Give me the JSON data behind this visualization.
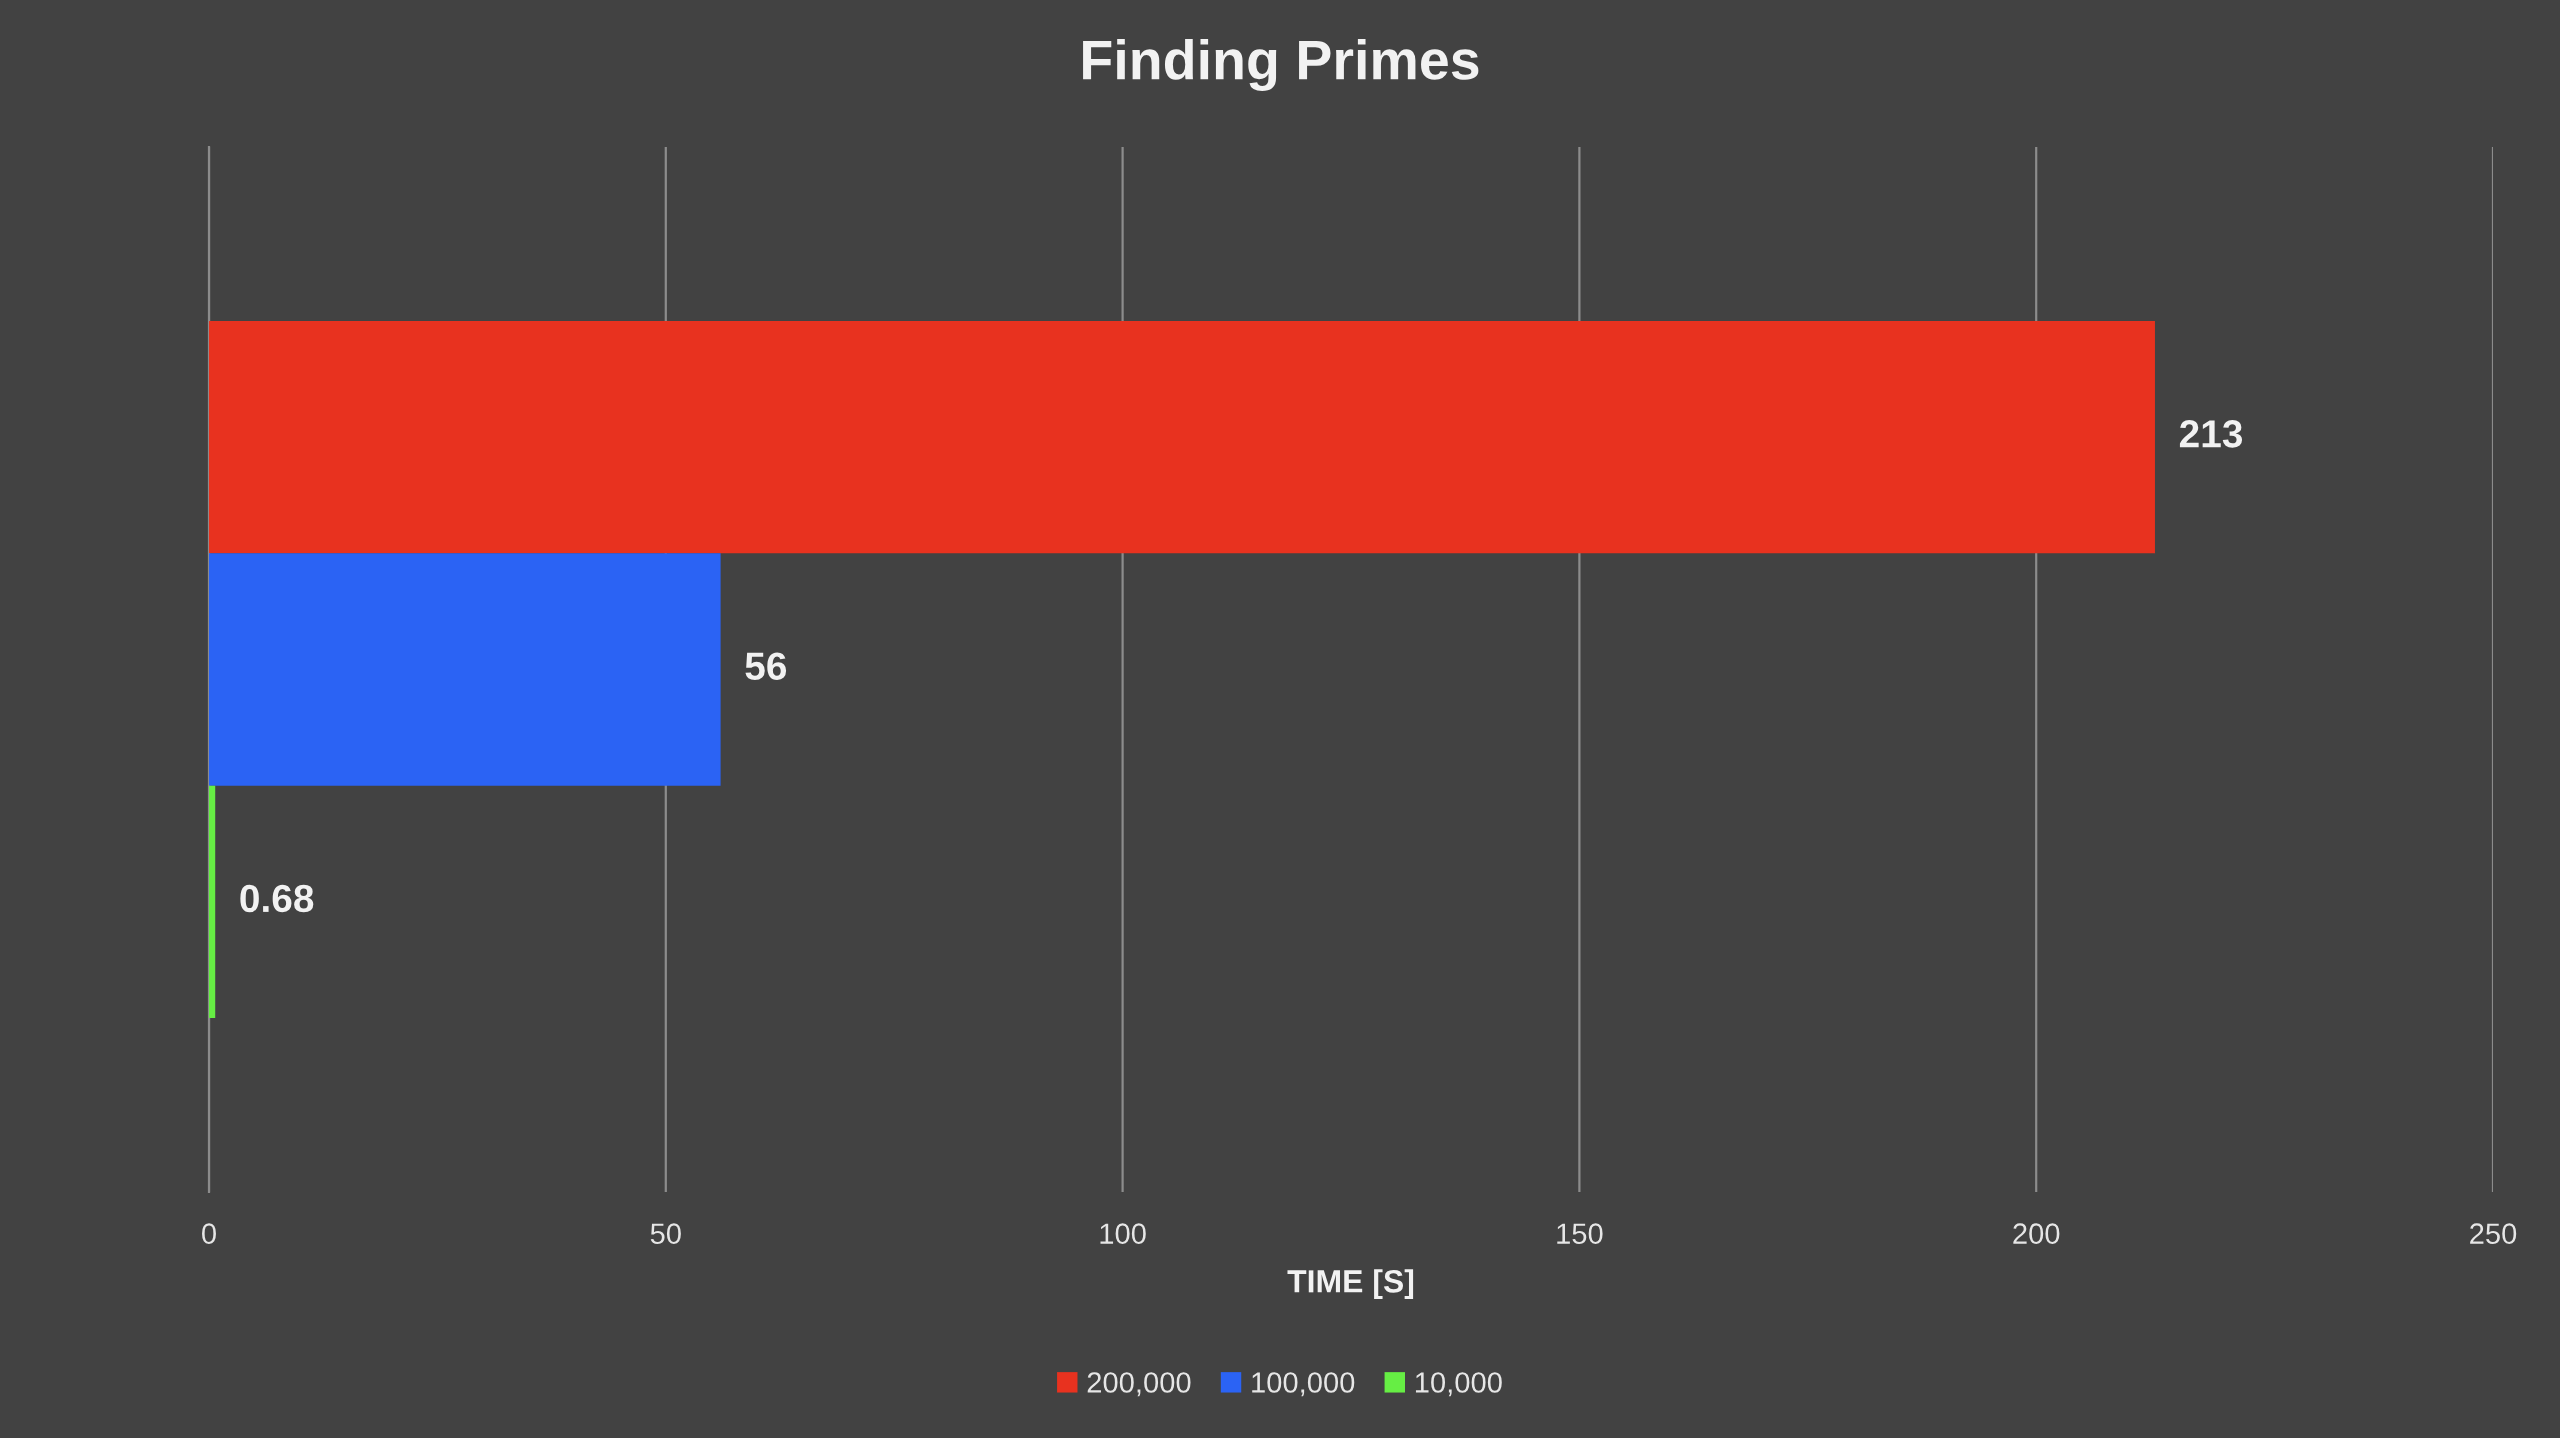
{
  "chart_data": {
    "type": "bar",
    "orientation": "horizontal",
    "title": "Finding Primes",
    "xlabel": "TIME [S]",
    "categories": [
      null
    ],
    "series": [
      {
        "name": "200,000",
        "color": "#e8321f",
        "values": [
          213
        ]
      },
      {
        "name": "100,000",
        "color": "#2b63f4",
        "values": [
          56
        ]
      },
      {
        "name": "10,000",
        "color": "#66ee44",
        "values": [
          0.68
        ]
      }
    ],
    "xlim": [
      0,
      250
    ],
    "xticks": [
      0,
      50,
      100,
      150,
      200,
      250
    ],
    "grid": "x",
    "legend": "bottom",
    "data_labels": true
  }
}
